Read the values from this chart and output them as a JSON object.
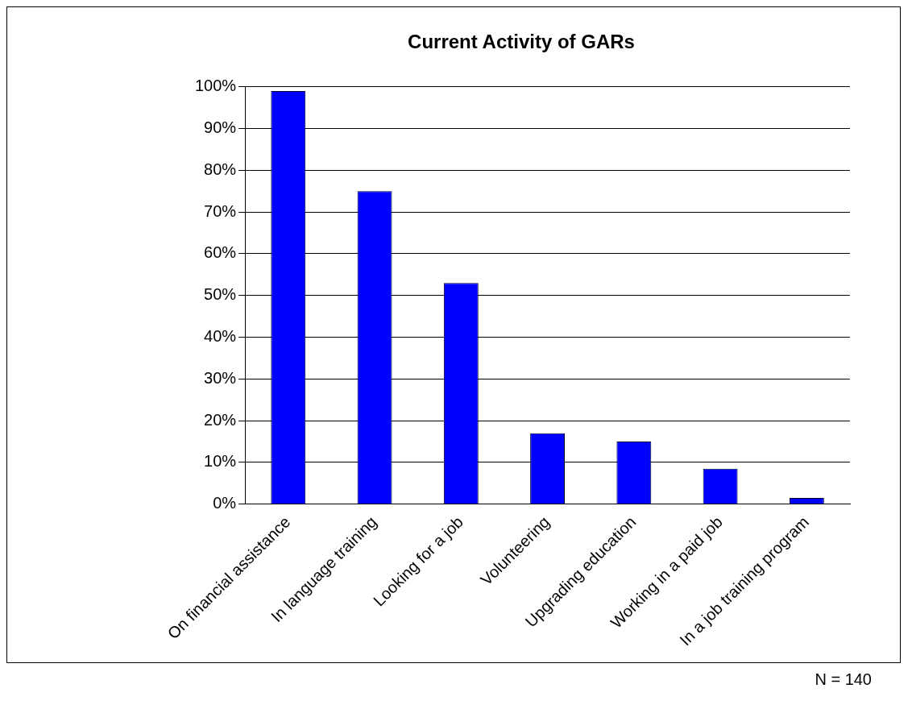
{
  "chart_data": {
    "type": "bar",
    "title": "Current Activity of GARs",
    "categories": [
      "On financial assistance",
      "In language training",
      "Looking for a job",
      "Volunteering",
      "Upgrading education",
      "Working in a paid job",
      "In a job training program"
    ],
    "values": [
      99,
      75,
      53,
      17,
      15,
      8.5,
      1.5
    ],
    "color": "#0000ff",
    "ylim": [
      0,
      100
    ],
    "yticks": [
      {
        "value": 0,
        "label": "0%"
      },
      {
        "value": 10,
        "label": "10%"
      },
      {
        "value": 20,
        "label": "20%"
      },
      {
        "value": 30,
        "label": "30%"
      },
      {
        "value": 40,
        "label": "40%"
      },
      {
        "value": 50,
        "label": "50%"
      },
      {
        "value": 60,
        "label": "60%"
      },
      {
        "value": 70,
        "label": "70%"
      },
      {
        "value": 80,
        "label": "80%"
      },
      {
        "value": 90,
        "label": "90%"
      },
      {
        "value": 100,
        "label": "100%"
      }
    ],
    "grid": "y",
    "legend": false,
    "annotations": [
      "N = 140"
    ]
  }
}
